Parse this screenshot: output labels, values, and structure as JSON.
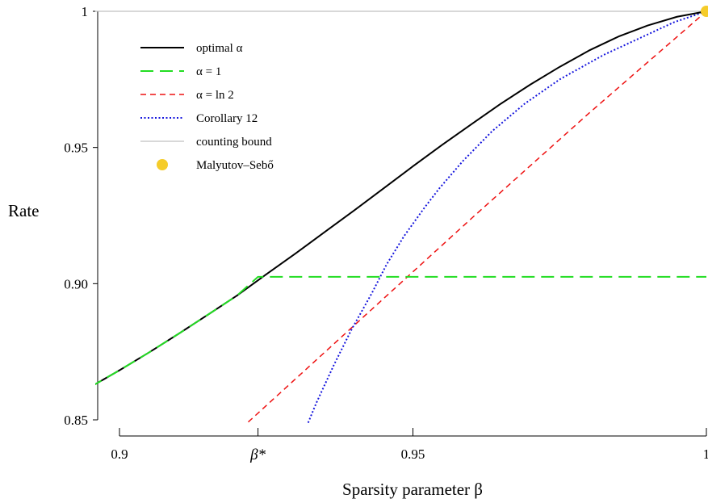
{
  "chart_data": {
    "type": "line",
    "xlabel": "Sparsity parameter β",
    "ylabel": "Rate",
    "xlim": [
      0.895,
      1.0
    ],
    "ylim": [
      0.85,
      1.0
    ],
    "x_ticks": [
      {
        "value": 0.9,
        "label": "0.9"
      },
      {
        "value": 0.9236,
        "label": "β*"
      },
      {
        "value": 0.95,
        "label": "0.95"
      },
      {
        "value": 1.0,
        "label": "1"
      }
    ],
    "y_ticks": [
      {
        "value": 0.85,
        "label": "0.85"
      },
      {
        "value": 0.9,
        "label": "0.90"
      },
      {
        "value": 0.95,
        "label": "0.95"
      },
      {
        "value": 1.0,
        "label": "1"
      }
    ],
    "grid": false,
    "legend_position": "top-left",
    "series": [
      {
        "name": "optimal α",
        "style": "solid",
        "color": "#000000",
        "x": [
          0.895,
          0.9,
          0.905,
          0.91,
          0.915,
          0.92,
          0.925,
          0.93,
          0.935,
          0.94,
          0.945,
          0.95,
          0.955,
          0.96,
          0.965,
          0.97,
          0.975,
          0.98,
          0.985,
          0.99,
          0.995,
          1.0
        ],
        "y": [
          0.862,
          0.8682,
          0.8747,
          0.8815,
          0.8885,
          0.8956,
          0.9034,
          0.9111,
          0.919,
          0.9269,
          0.935,
          0.9431,
          0.951,
          0.9586,
          0.9661,
          0.9731,
          0.9796,
          0.9856,
          0.9907,
          0.9948,
          0.998,
          1.0
        ]
      },
      {
        "name": "α = 1",
        "style": "long-dash",
        "color": "#22dd22",
        "x": [
          0.895,
          0.9,
          0.905,
          0.91,
          0.915,
          0.92,
          0.9236,
          0.95,
          1.0
        ],
        "y": [
          0.862,
          0.8682,
          0.8747,
          0.8815,
          0.8885,
          0.8956,
          0.9025,
          0.9025,
          0.9025
        ]
      },
      {
        "name": "α = ln 2",
        "style": "dash",
        "color": "#ee1111",
        "x": [
          0.9195,
          0.94,
          0.96,
          0.98,
          1.0
        ],
        "y": [
          0.8444,
          0.8847,
          0.924,
          0.9626,
          1.0
        ]
      },
      {
        "name": "Corollary 12",
        "style": "dot",
        "color": "#1515dd",
        "x": [
          0.9312,
          0.9335,
          0.9365,
          0.9395,
          0.943,
          0.9455,
          0.9485,
          0.952,
          0.9545,
          0.9585,
          0.9635,
          0.969,
          0.975,
          0.9825,
          0.9885,
          0.9945,
          1.0
        ],
        "y": [
          0.844,
          0.856,
          0.87,
          0.883,
          0.8965,
          0.907,
          0.9175,
          0.928,
          0.935,
          0.945,
          0.956,
          0.966,
          0.975,
          0.984,
          0.99,
          0.996,
          1.0
        ]
      },
      {
        "name": "counting bound",
        "style": "thin-solid",
        "color": "#b0b0b0",
        "x": [
          0.895,
          1.0
        ],
        "y": [
          1.0,
          1.0
        ]
      },
      {
        "name": "Malyutov–Sebő",
        "style": "point",
        "color": "#f5cc2a",
        "x": [
          1.0
        ],
        "y": [
          1.0
        ]
      }
    ]
  }
}
